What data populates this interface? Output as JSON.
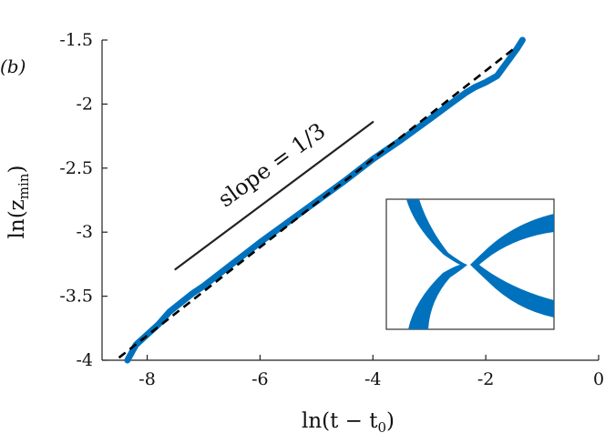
{
  "chart_data": {
    "type": "line",
    "panel_label": "(b)",
    "xlabel": "ln(t − t₀)",
    "xlabel_main": "ln(t − t",
    "xlabel_sub": "0",
    "xlabel_close": ")",
    "ylabel": "ln(z_min)",
    "ylabel_main": "ln(z",
    "ylabel_sub": "min",
    "ylabel_close": ")",
    "xlim": [
      -8.8,
      0
    ],
    "ylim": [
      -4,
      -1.5
    ],
    "xticks": [
      -8,
      -6,
      -4,
      -2,
      0
    ],
    "xtick_labels": [
      "-8",
      "-6",
      "-4",
      "-2",
      "0"
    ],
    "yticks": [
      -1.5,
      -2,
      -2.5,
      -3,
      -3.5,
      -4
    ],
    "ytick_labels": [
      "-1.5",
      "-2",
      "-2.5",
      "-3",
      "-3.5",
      "-4"
    ],
    "grid": false,
    "series": [
      {
        "role": "data",
        "color": "#0072BD",
        "x": [
          -8.35,
          -8.2,
          -8.0,
          -7.8,
          -7.6,
          -7.4,
          -7.2,
          -7.0,
          -6.5,
          -6.0,
          -5.5,
          -5.0,
          -4.5,
          -4.0,
          -3.5,
          -3.0,
          -2.6,
          -2.35,
          -2.2,
          -2.0,
          -1.8,
          -1.6,
          -1.45,
          -1.35
        ],
        "y": [
          -4.0,
          -3.88,
          -3.8,
          -3.72,
          -3.62,
          -3.55,
          -3.48,
          -3.42,
          -3.25,
          -3.08,
          -2.92,
          -2.76,
          -2.6,
          -2.43,
          -2.28,
          -2.12,
          -1.99,
          -1.91,
          -1.87,
          -1.83,
          -1.78,
          -1.66,
          -1.57,
          -1.5
        ]
      },
      {
        "role": "fit",
        "color": "#000000",
        "style": "dashed",
        "x": [
          -8.5,
          -1.45
        ],
        "y": [
          -3.98,
          -1.55
        ]
      },
      {
        "role": "reference",
        "color": "#222222",
        "x": [
          -7.5,
          -4.0
        ],
        "y": [
          -3.29,
          -2.14
        ]
      }
    ],
    "annotation": "slope = 1/3",
    "annotation_at": [
      -5.7,
      -2.55
    ],
    "inset": "interface shape near pinch-off"
  }
}
